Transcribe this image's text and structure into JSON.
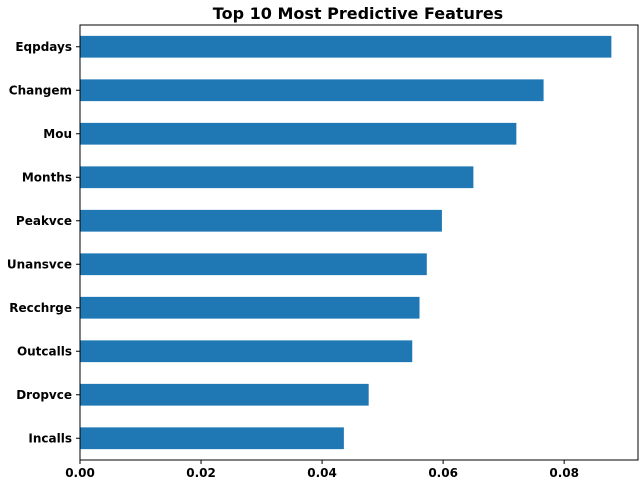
{
  "chart_data": {
    "type": "bar",
    "orientation": "horizontal",
    "title": "Top 10 Most Predictive Features",
    "xlabel": "",
    "ylabel": "",
    "categories": [
      "Eqpdays",
      "Changem",
      "Mou",
      "Months",
      "Peakvce",
      "Unansvce",
      "Recchrge",
      "Outcalls",
      "Dropvce",
      "Incalls"
    ],
    "values": [
      0.0878,
      0.0766,
      0.0721,
      0.065,
      0.0598,
      0.0573,
      0.0561,
      0.0549,
      0.0477,
      0.0436
    ],
    "xlim": [
      0,
      0.0922
    ],
    "xticks": [
      0.0,
      0.02,
      0.04,
      0.06,
      0.08
    ],
    "xtick_labels": [
      "0.00",
      "0.02",
      "0.04",
      "0.06",
      "0.08"
    ],
    "grid": false,
    "legend": "none",
    "bar_color": "#1f77b4"
  }
}
